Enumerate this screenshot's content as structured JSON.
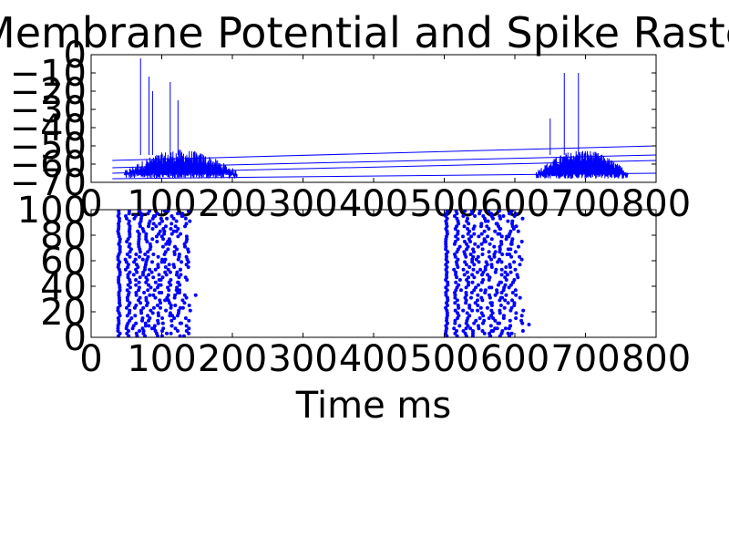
{
  "figure": {
    "title": "Membrane Potential and Spike Raster",
    "xlabel": "Time ms"
  },
  "colors": {
    "trace": "#0000ff",
    "axes": "#000000",
    "background": "#ffffff"
  },
  "chart_data": [
    {
      "type": "line",
      "panel": "membrane-potential",
      "xlim": [
        0,
        800
      ],
      "ylim": [
        -70,
        0
      ],
      "xticks": [
        0,
        100,
        200,
        300,
        400,
        500,
        600,
        700,
        800
      ],
      "yticks": [
        -70,
        -60,
        -50,
        -40,
        -30,
        -20,
        -10,
        0
      ],
      "xtick_labels": [
        "0",
        "100",
        "200",
        "300",
        "400",
        "500",
        "600",
        "700",
        "800"
      ],
      "ytick_labels": [
        "−70",
        "−60",
        "−50",
        "−40",
        "−30",
        "−20",
        "−10",
        "0"
      ],
      "grid": false,
      "bursts": [
        {
          "x_start": 47,
          "x_end": 207,
          "baseline_mV": -58,
          "upper_envelope_mV": -52
        },
        {
          "x_start": 630,
          "x_end": 760,
          "baseline_mV": -60,
          "upper_envelope_mV": -52
        }
      ],
      "peaks": [
        {
          "x": 70,
          "y": -2
        },
        {
          "x": 82,
          "y": -12
        },
        {
          "x": 87,
          "y": -20
        },
        {
          "x": 112,
          "y": -15
        },
        {
          "x": 123,
          "y": -25
        },
        {
          "x": 650,
          "y": -35
        },
        {
          "x": 670,
          "y": -10
        },
        {
          "x": 690,
          "y": -10
        }
      ],
      "drift_lines": [
        {
          "x0": 30,
          "y0": -58,
          "x1": 800,
          "y1": -50
        },
        {
          "x0": 30,
          "y0": -62,
          "x1": 800,
          "y1": -55
        },
        {
          "x0": 30,
          "y0": -65,
          "x1": 800,
          "y1": -58
        },
        {
          "x0": 30,
          "y0": -68,
          "x1": 800,
          "y1": -65
        }
      ]
    },
    {
      "type": "scatter",
      "panel": "spike-raster",
      "xlim": [
        0,
        800
      ],
      "ylim": [
        0,
        100
      ],
      "xticks": [
        0,
        100,
        200,
        300,
        400,
        500,
        600,
        700,
        800
      ],
      "yticks": [
        0,
        20,
        40,
        60,
        80,
        100
      ],
      "xtick_labels": [
        "0",
        "100",
        "200",
        "300",
        "400",
        "500",
        "600",
        "700",
        "800"
      ],
      "ytick_labels": [
        "0",
        "20",
        "40",
        "60",
        "80",
        "100"
      ],
      "grid": false,
      "bursts": [
        {
          "x_start": 38,
          "x_end": 140,
          "neurons": 100
        },
        {
          "x_start": 502,
          "x_end": 610,
          "neurons": 100
        }
      ],
      "outliers": [
        {
          "x": 148,
          "y": 33
        },
        {
          "x": 620,
          "y": 10
        }
      ]
    }
  ]
}
